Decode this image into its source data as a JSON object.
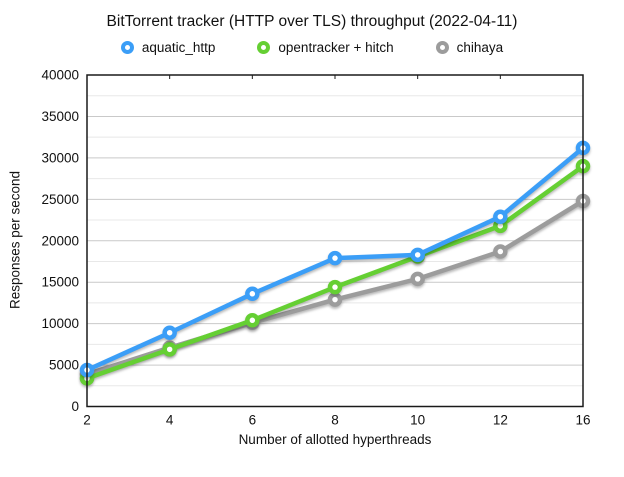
{
  "chart": {
    "title": "BitTorrent tracker (HTTP over TLS) throughput (2022-04-11)"
  },
  "chart_data": {
    "type": "line",
    "title": "BitTorrent tracker (HTTP over TLS) throughput (2022-04-11)",
    "xlabel": "Number of allotted hyperthreads",
    "ylabel": "Responses per second",
    "categories": [
      "2",
      "4",
      "6",
      "8",
      "10",
      "12",
      "16"
    ],
    "series": [
      {
        "name": "aquatic_http",
        "color": "#3B9EF7",
        "values": [
          4400,
          8900,
          13600,
          17900,
          18300,
          22900,
          31200
        ]
      },
      {
        "name": "opentracker + hitch",
        "color": "#65CF33",
        "values": [
          3400,
          6900,
          10400,
          14400,
          18100,
          21800,
          29000
        ]
      },
      {
        "name": "chihaya",
        "color": "#9C9C9C",
        "values": [
          3900,
          7100,
          10100,
          12900,
          15400,
          18700,
          24800
        ]
      }
    ],
    "ylim": [
      0,
      40000
    ],
    "y_major_step": 5000,
    "y_minor_step": 2500,
    "y_tick_labels": [
      "0",
      "5000",
      "10000",
      "15000",
      "20000",
      "25000",
      "30000",
      "35000",
      "40000"
    ],
    "grid": true,
    "legend_position": "top",
    "marker_style": "donut-circle",
    "colors": {
      "grid_major": "#C9C9C9",
      "grid_minor": "#E8E8E8",
      "frame": "#1A1A1A",
      "text": "#111111"
    }
  }
}
